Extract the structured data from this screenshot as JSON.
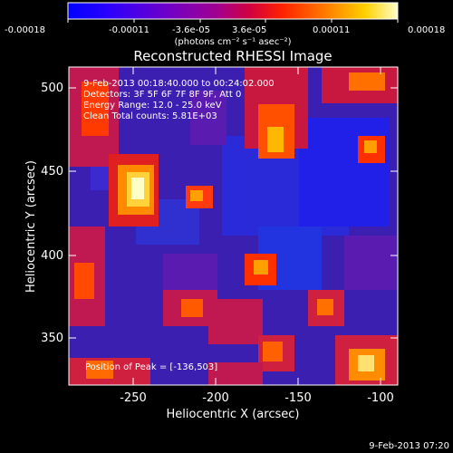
{
  "colorbar": {
    "tick_labels": [
      "-0.00018",
      "-0.00011",
      "-3.6e-05",
      "3.6e-05",
      "0.00011",
      "0.00018"
    ],
    "unit_label": "(photons cm⁻² s⁻¹ asec⁻²)",
    "colors": [
      "#0000ff",
      "#2a00ff",
      "#6f00c8",
      "#a00090",
      "#d00040",
      "#ff2200",
      "#ff7a00",
      "#ffd000",
      "#ffffc8"
    ]
  },
  "title": "Reconstructed RHESSI Image",
  "info": {
    "time_range": "9-Feb-2013 00:18:40.000 to 00:24:02.000",
    "detectors": "Detectors: 3F 5F 6F 7F 8F 9F, Att 0",
    "energy": "Energy Range: 12.0 - 25.0 keV",
    "clean": "Clean     Total counts: 5.81E+03",
    "peak": "Position of Peak = [-136,503]"
  },
  "axes": {
    "xlabel": "Heliocentric X (arcsec)",
    "ylabel": "Heliocentric Y (arcsec)",
    "xticks": [
      "-250",
      "-200",
      "-150",
      "-100"
    ],
    "yticks": [
      "500",
      "450",
      "400",
      "350"
    ]
  },
  "footer": {
    "timestamp": "9-Feb-2013 07:20"
  }
}
